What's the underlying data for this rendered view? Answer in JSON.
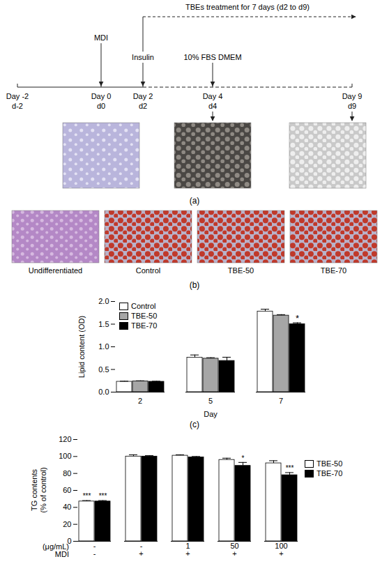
{
  "timeline": {
    "header": "TBEs treatment for 7 days (d2 to d9)",
    "days": [
      {
        "label": "Day -2",
        "short": "d-2"
      },
      {
        "label": "Day 0",
        "short": "d0"
      },
      {
        "label": "Day 2",
        "short": "d2"
      },
      {
        "label": "Day 4",
        "short": "d4"
      },
      {
        "label": "Day 9",
        "short": "d9"
      }
    ],
    "events": [
      {
        "day": "Day 0",
        "label": "MDI"
      },
      {
        "day": "Day 2",
        "label": "Insulin"
      },
      {
        "day": "Day 4",
        "label": "10% FBS DMEM"
      }
    ],
    "panel_label": "(a)"
  },
  "micrographs": {
    "labels": [
      "Undifferentiated",
      "Control",
      "TBE-50",
      "TBE-70"
    ],
    "panel_label": "(b)"
  },
  "chart_data": [
    {
      "type": "bar",
      "panel_label": "(c)",
      "y_label": "Lipid content (OD)",
      "x_label": "Day",
      "categories": [
        "2",
        "5",
        "7"
      ],
      "series": [
        {
          "name": "Control",
          "color": "#ffffff",
          "values": [
            0.23,
            0.76,
            1.78
          ],
          "errors": [
            0.01,
            0.06,
            0.05
          ]
        },
        {
          "name": "TBE-50",
          "color": "#a6a6a6",
          "values": [
            0.24,
            0.74,
            1.69
          ],
          "errors": [
            0.01,
            0.02,
            0.02
          ]
        },
        {
          "name": "TBE-70",
          "color": "#000000",
          "values": [
            0.23,
            0.69,
            1.5
          ],
          "errors": [
            0.01,
            0.08,
            0.03
          ]
        }
      ],
      "ylim": [
        0,
        2
      ],
      "yticks": [
        {
          "value": 0,
          "label": "0.0"
        },
        {
          "value": 0.5,
          "label": "0.5"
        },
        {
          "value": 1,
          "label": "1.0"
        },
        {
          "value": 1.5,
          "label": "1.5"
        },
        {
          "value": 2,
          "label": "2.0"
        }
      ],
      "legend": "top-left",
      "annotations": [
        {
          "series": "TBE-70",
          "category_index": 2,
          "text": "*"
        }
      ]
    },
    {
      "type": "bar",
      "y_label": "TG contents (% of control)",
      "x_rows": [
        {
          "label": "(μg/mL)",
          "values": [
            "-",
            "-",
            "1",
            "50",
            "100"
          ]
        },
        {
          "label": "MDI",
          "values": [
            "-",
            "+",
            "+",
            "+",
            "+"
          ]
        }
      ],
      "series": [
        {
          "name": "TBE-50",
          "color": "#ffffff",
          "values": [
            47,
            100,
            101,
            96,
            92
          ],
          "errors": [
            1,
            2,
            1,
            2,
            3
          ]
        },
        {
          "name": "TBE-70",
          "color": "#000000",
          "values": [
            47,
            100,
            99,
            89,
            78
          ],
          "errors": [
            1,
            1,
            1,
            4,
            3
          ]
        }
      ],
      "ylim": [
        0,
        120
      ],
      "yticks": [
        0,
        20,
        40,
        60,
        80,
        100,
        120
      ],
      "legend": "right",
      "annotations": [
        {
          "series": "TBE-50",
          "category_index": 0,
          "text": "***"
        },
        {
          "series": "TBE-70",
          "category_index": 0,
          "text": "***"
        },
        {
          "series": "TBE-70",
          "category_index": 3,
          "text": "*"
        },
        {
          "series": "TBE-70",
          "category_index": 4,
          "text": "***"
        }
      ]
    }
  ]
}
